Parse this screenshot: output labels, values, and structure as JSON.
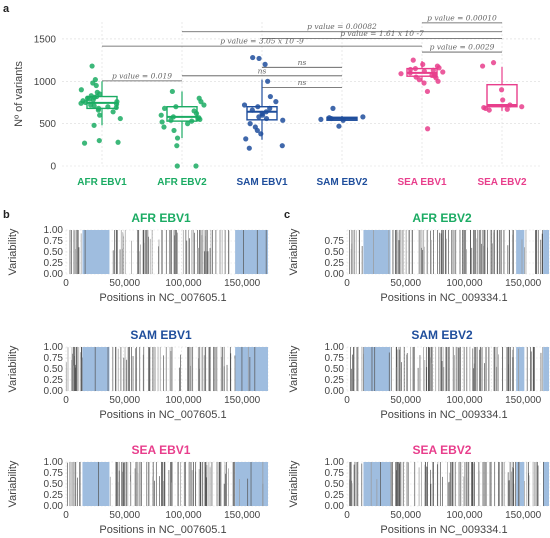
{
  "panels": [
    {
      "id": "a",
      "label": "a"
    },
    {
      "id": "b",
      "label": "b"
    },
    {
      "id": "c",
      "label": "c"
    }
  ],
  "chart_data": [
    {
      "panel": "a",
      "type": "box",
      "title": "",
      "xlabel": "",
      "ylabel": "Nº of variants",
      "ylim": [
        0,
        1700
      ],
      "yticks": [
        0,
        500,
        1000,
        1500
      ],
      "grid": true,
      "categories": [
        "AFR EBV1",
        "AFR EBV2",
        "SAM EBV1",
        "SAM EBV2",
        "SEA EBV1",
        "SEA EBV2"
      ],
      "category_colors": [
        "#1bab63",
        "#1bab63",
        "#1f4e9c",
        "#1f4e9c",
        "#e83e8c",
        "#e83e8c"
      ],
      "boxes": [
        {
          "category": "AFR EBV1",
          "q1": 680,
          "median": 745,
          "q3": 820,
          "whisker_low": 480,
          "whisker_high": 1000,
          "points": [
            1180,
            1020,
            980,
            950,
            900,
            870,
            850,
            830,
            820,
            810,
            800,
            790,
            780,
            770,
            760,
            750,
            740,
            730,
            720,
            710,
            700,
            690,
            680,
            660,
            640,
            600,
            560,
            480,
            300,
            280,
            270
          ]
        },
        {
          "category": "AFR EBV2",
          "q1": 530,
          "median": 580,
          "q3": 700,
          "whisker_low": 330,
          "whisker_high": 880,
          "points": [
            880,
            800,
            760,
            720,
            700,
            680,
            650,
            620,
            600,
            580,
            570,
            560,
            550,
            540,
            530,
            520,
            500,
            460,
            420,
            330,
            240,
            0,
            0
          ]
        },
        {
          "category": "SAM EBV1",
          "q1": 545,
          "median": 640,
          "q3": 700,
          "whisker_low": 310,
          "whisker_high": 1020,
          "points": [
            1280,
            1270,
            1200,
            1000,
            820,
            760,
            720,
            700,
            680,
            660,
            640,
            620,
            600,
            580,
            560,
            540,
            500,
            460,
            420,
            380,
            320,
            240,
            210
          ]
        },
        {
          "category": "SAM EBV2",
          "q1": 540,
          "median": 560,
          "q3": 575,
          "whisker_low": 530,
          "whisker_high": 590,
          "points": [
            680,
            580,
            570,
            560,
            550,
            540,
            470
          ]
        },
        {
          "category": "SEA EBV1",
          "q1": 1060,
          "median": 1100,
          "q3": 1150,
          "whisker_low": 990,
          "whisker_high": 1240,
          "points": [
            1250,
            1200,
            1180,
            1160,
            1150,
            1140,
            1130,
            1120,
            1110,
            1100,
            1090,
            1080,
            1070,
            1060,
            1050,
            1040,
            1020,
            1000,
            980,
            880,
            440
          ]
        },
        {
          "category": "SEA EBV2",
          "q1": 700,
          "median": 720,
          "q3": 960,
          "whisker_low": 650,
          "whisker_high": 1170,
          "points": [
            1220,
            1180,
            900,
            780,
            720,
            700,
            690,
            680,
            670,
            660
          ]
        }
      ],
      "comparisons": [
        {
          "from": 4,
          "to": 5,
          "label": "p value = 0.00010"
        },
        {
          "from": 1,
          "to": 5,
          "label": "p value = 0.00082"
        },
        {
          "from": 2,
          "to": 5,
          "label": "p value = 1.61 x 10 -7"
        },
        {
          "from": 0,
          "to": 4,
          "label": "p value = 3.05 x 10 -9"
        },
        {
          "from": 4,
          "to": 5,
          "label": "p value = 0.0029"
        },
        {
          "from": 2,
          "to": 3,
          "label": "ns"
        },
        {
          "from": 1,
          "to": 3,
          "label": "ns"
        },
        {
          "from": 0,
          "to": 1,
          "label": "p value = 0.019"
        },
        {
          "from": 2,
          "to": 3,
          "label": "ns"
        }
      ]
    },
    {
      "panel": "b",
      "type": "bar",
      "title": "AFR EBV1",
      "title_color": "#1bab63",
      "xlabel": "Positions in NC_007605.1",
      "ylabel": "Variability",
      "xlim": [
        0,
        172000
      ],
      "xticks": [
        "0",
        "50,000",
        "100,000",
        "150,000"
      ],
      "ylim": [
        0,
        1
      ],
      "yticks": [
        "0.00",
        "0.25",
        "0.50",
        "0.75",
        "1.00"
      ],
      "blue_regions": [
        [
          14000,
          37000
        ],
        [
          144000,
          172000
        ]
      ],
      "density": 0.6,
      "seed": 11
    },
    {
      "panel": "b",
      "type": "bar",
      "title": "SAM EBV1",
      "title_color": "#1f4e9c",
      "xlabel": "Positions in NC_007605.1",
      "ylabel": "Variability",
      "xlim": [
        0,
        172000
      ],
      "xticks": [
        "0",
        "50,000",
        "100,000",
        "150,000"
      ],
      "ylim": [
        0,
        1
      ],
      "yticks": [
        "0.00",
        "0.25",
        "0.50",
        "0.75",
        "1.00"
      ],
      "blue_regions": [
        [
          14000,
          37000
        ],
        [
          144000,
          172000
        ]
      ],
      "density": 0.6,
      "seed": 23
    },
    {
      "panel": "b",
      "type": "bar",
      "title": "SEA EBV1",
      "title_color": "#e83e8c",
      "xlabel": "Positions in NC_007605.1",
      "ylabel": "Variability",
      "xlim": [
        0,
        172000
      ],
      "xticks": [
        "0",
        "50,000",
        "100,000",
        "150,000"
      ],
      "ylim": [
        0,
        1
      ],
      "yticks": [
        "0.00",
        "0.25",
        "0.50",
        "0.75",
        "1.00"
      ],
      "blue_regions": [
        [
          14000,
          37000
        ],
        [
          144000,
          172000
        ]
      ],
      "density": 0.85,
      "seed": 37
    },
    {
      "panel": "c",
      "type": "bar",
      "title": "AFR EBV2",
      "title_color": "#1bab63",
      "xlabel": "Positions in NC_009334.1",
      "ylabel": "Variability",
      "xlim": [
        0,
        172000
      ],
      "xticks": [
        "0",
        "50,000",
        "100,000",
        "150,000"
      ],
      "ylim": [
        0,
        1
      ],
      "yticks": [
        "0.00",
        "0.25",
        "0.50",
        "0.75"
      ],
      "blue_regions": [
        [
          14000,
          37000
        ],
        [
          144000,
          151000
        ],
        [
          167000,
          172000
        ]
      ],
      "density": 0.75,
      "seed": 41
    },
    {
      "panel": "c",
      "type": "bar",
      "title": "SAM EBV2",
      "title_color": "#1f4e9c",
      "xlabel": "Positions in NC_009334.1",
      "ylabel": "Variability",
      "xlim": [
        0,
        172000
      ],
      "xticks": [
        "0",
        "50,000",
        "100,000",
        "150,000"
      ],
      "ylim": [
        0,
        1
      ],
      "yticks": [
        "0.00",
        "0.25",
        "0.50",
        "0.75",
        "1.00"
      ],
      "blue_regions": [
        [
          14000,
          37000
        ],
        [
          144000,
          151000
        ],
        [
          167000,
          172000
        ]
      ],
      "density": 0.9,
      "seed": 53
    },
    {
      "panel": "c",
      "type": "bar",
      "title": "SEA EBV2",
      "title_color": "#e83e8c",
      "xlabel": "Positions in NC_009334.1",
      "ylabel": "Variability",
      "xlim": [
        0,
        172000
      ],
      "xticks": [
        "0",
        "50,000",
        "100,000",
        "150,000"
      ],
      "ylim": [
        0,
        1
      ],
      "yticks": [
        "0.00",
        "0.25",
        "0.50",
        "0.75",
        "1.00"
      ],
      "blue_regions": [
        [
          14000,
          37000
        ],
        [
          144000,
          151000
        ],
        [
          167000,
          172000
        ]
      ],
      "density": 0.95,
      "seed": 67
    }
  ],
  "colors": {
    "grid": "#d9d9d9",
    "bar": "#555555",
    "bar_light": "#9a9a9a",
    "blue_region": "#9fbddf",
    "box_stroke_afr": "#1bab63",
    "box_stroke_sam": "#1f4e9c",
    "box_stroke_sea": "#e83e8c",
    "bracket": "#555555"
  }
}
